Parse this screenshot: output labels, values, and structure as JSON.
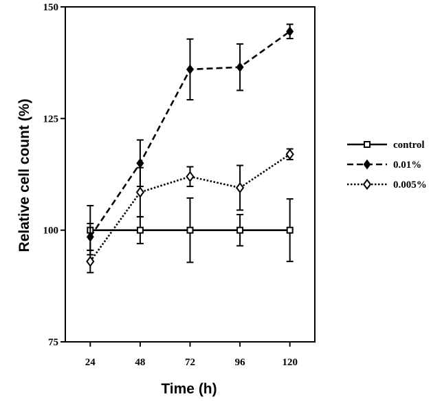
{
  "chart_data": {
    "type": "line",
    "xlabel": "Time (h)",
    "ylabel": "Relative cell count (%)",
    "x": [
      24,
      48,
      72,
      96,
      120
    ],
    "xticks": [
      "24",
      "48",
      "72",
      "96",
      "120"
    ],
    "yticks": [
      "75",
      "100",
      "125",
      "150"
    ],
    "xlim": [
      12,
      132
    ],
    "ylim": [
      75,
      150
    ],
    "grid": false,
    "legend_position": "right",
    "series": [
      {
        "name": "control",
        "line_style": "solid",
        "marker": "open-square",
        "values": [
          100,
          100,
          100,
          100,
          100
        ],
        "errors": [
          5.5,
          3.0,
          7.2,
          3.5,
          7.0
        ]
      },
      {
        "name": "0.01%",
        "line_style": "dashed",
        "marker": "filled-diamond",
        "values": [
          98.5,
          115,
          136,
          136.5,
          144.5
        ],
        "errors": [
          3.0,
          5.2,
          6.8,
          5.2,
          1.6
        ]
      },
      {
        "name": "0.005%",
        "line_style": "dotted",
        "marker": "open-diamond",
        "values": [
          93,
          108.5,
          112,
          109.5,
          117
        ],
        "errors": [
          2.5,
          5.5,
          2.2,
          5.0,
          1.2
        ]
      }
    ]
  }
}
